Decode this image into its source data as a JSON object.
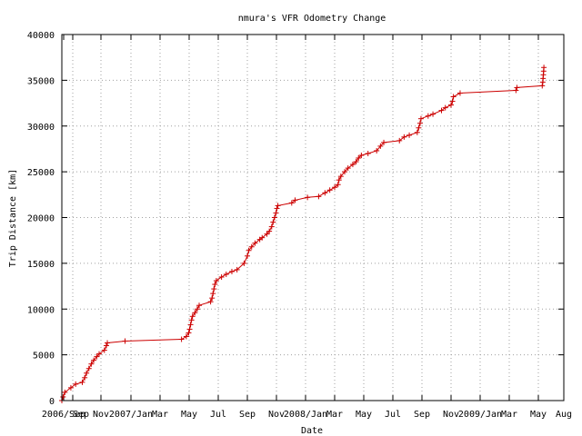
{
  "chart_data": {
    "type": "line",
    "title": "nmura's VFR Odometry Change",
    "xlabel": "Date",
    "ylabel": "Trip Distance [km]",
    "x_tick_labels": [
      "2006/Sep",
      "Sep",
      "Nov",
      "2007/Jan",
      "Mar",
      "May",
      "Jul",
      "Sep",
      "Nov",
      "2008/Jan",
      "Mar",
      "May",
      "Jul",
      "Sep",
      "Nov",
      "2009/Jan",
      "Mar",
      "May",
      "Aug"
    ],
    "y_ticks": [
      0,
      5000,
      10000,
      15000,
      20000,
      25000,
      30000,
      35000,
      40000
    ],
    "ylim": [
      0,
      40000
    ],
    "grid": true,
    "series": [
      {
        "color": "#cc0000",
        "points": [
          [
            "2006-08-28",
            0
          ],
          [
            "2006-08-30",
            400
          ],
          [
            "2006-09-02",
            900
          ],
          [
            "2006-09-12",
            1400
          ],
          [
            "2006-09-20",
            1800
          ],
          [
            "2006-10-01",
            2000
          ],
          [
            "2006-10-05",
            2500
          ],
          [
            "2006-10-08",
            3000
          ],
          [
            "2006-10-12",
            3500
          ],
          [
            "2006-10-16",
            4000
          ],
          [
            "2006-10-20",
            4400
          ],
          [
            "2006-10-25",
            4800
          ],
          [
            "2006-10-29",
            5100
          ],
          [
            "2006-11-08",
            5500
          ],
          [
            "2006-11-12",
            6000
          ],
          [
            "2006-11-14",
            6300
          ],
          [
            "2006-12-20",
            6500
          ],
          [
            "2007-04-15",
            6700
          ],
          [
            "2007-04-25",
            7000
          ],
          [
            "2007-04-30",
            7400
          ],
          [
            "2007-05-02",
            7800
          ],
          [
            "2007-05-04",
            8300
          ],
          [
            "2007-05-06",
            8800
          ],
          [
            "2007-05-08",
            9200
          ],
          [
            "2007-05-13",
            9600
          ],
          [
            "2007-05-18",
            10000
          ],
          [
            "2007-05-22",
            10400
          ],
          [
            "2007-06-15",
            10800
          ],
          [
            "2007-06-18",
            11200
          ],
          [
            "2007-06-20",
            11700
          ],
          [
            "2007-06-22",
            12200
          ],
          [
            "2007-06-24",
            12700
          ],
          [
            "2007-06-27",
            13100
          ],
          [
            "2007-07-08",
            13500
          ],
          [
            "2007-07-18",
            13800
          ],
          [
            "2007-07-30",
            14100
          ],
          [
            "2007-08-10",
            14300
          ],
          [
            "2007-08-25",
            15000
          ],
          [
            "2007-09-01",
            15800
          ],
          [
            "2007-09-04",
            16400
          ],
          [
            "2007-09-10",
            16800
          ],
          [
            "2007-09-17",
            17200
          ],
          [
            "2007-09-27",
            17600
          ],
          [
            "2007-10-02",
            17800
          ],
          [
            "2007-10-12",
            18200
          ],
          [
            "2007-10-17",
            18500
          ],
          [
            "2007-10-22",
            19000
          ],
          [
            "2007-10-25",
            19500
          ],
          [
            "2007-10-28",
            20000
          ],
          [
            "2007-10-31",
            20500
          ],
          [
            "2007-11-02",
            21000
          ],
          [
            "2007-11-04",
            21300
          ],
          [
            "2007-12-03",
            21600
          ],
          [
            "2007-12-10",
            21900
          ],
          [
            "2008-01-05",
            22200
          ],
          [
            "2008-01-28",
            22300
          ],
          [
            "2008-02-10",
            22700
          ],
          [
            "2008-02-20",
            23000
          ],
          [
            "2008-03-01",
            23300
          ],
          [
            "2008-03-08",
            23600
          ],
          [
            "2008-03-10",
            24100
          ],
          [
            "2008-03-14",
            24500
          ],
          [
            "2008-03-22",
            25000
          ],
          [
            "2008-03-29",
            25400
          ],
          [
            "2008-04-08",
            25800
          ],
          [
            "2008-04-15",
            26100
          ],
          [
            "2008-04-20",
            26500
          ],
          [
            "2008-04-26",
            26800
          ],
          [
            "2008-05-10",
            27000
          ],
          [
            "2008-05-28",
            27300
          ],
          [
            "2008-06-05",
            27800
          ],
          [
            "2008-06-12",
            28200
          ],
          [
            "2008-07-15",
            28400
          ],
          [
            "2008-07-25",
            28800
          ],
          [
            "2008-08-05",
            29000
          ],
          [
            "2008-08-22",
            29300
          ],
          [
            "2008-08-25",
            29800
          ],
          [
            "2008-08-28",
            30300
          ],
          [
            "2008-08-30",
            30800
          ],
          [
            "2008-09-14",
            31100
          ],
          [
            "2008-09-24",
            31300
          ],
          [
            "2008-10-12",
            31700
          ],
          [
            "2008-10-20",
            32000
          ],
          [
            "2008-11-01",
            32300
          ],
          [
            "2008-11-04",
            32700
          ],
          [
            "2008-11-06",
            33200
          ],
          [
            "2008-11-20",
            33600
          ],
          [
            "2009-03-15",
            33900
          ],
          [
            "2009-03-17",
            34200
          ],
          [
            "2009-05-15",
            34400
          ],
          [
            "2009-05-17",
            34800
          ],
          [
            "2009-05-18",
            35200
          ],
          [
            "2009-05-19",
            35600
          ],
          [
            "2009-05-20",
            36000
          ],
          [
            "2009-05-21",
            36400
          ]
        ]
      }
    ]
  },
  "page": {
    "title": "nmura's VFR Odometry Change",
    "xlabel": "Date",
    "ylabel": "Trip Distance [km]"
  }
}
